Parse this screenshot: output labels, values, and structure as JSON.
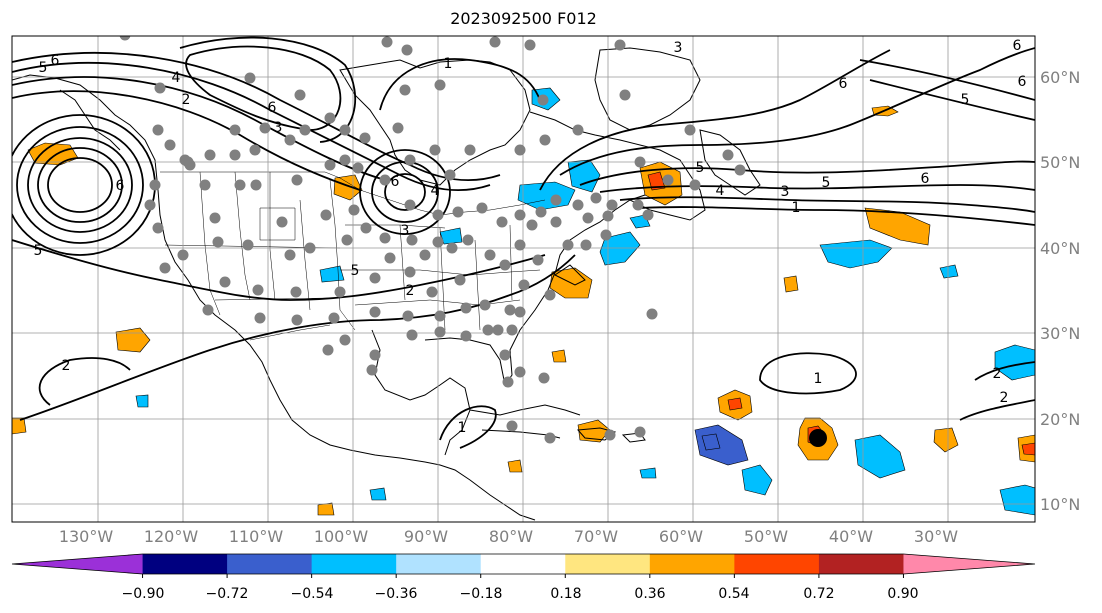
{
  "title": "2023092500 F012",
  "lon_labels": [
    "130°W",
    "120°W",
    "110°W",
    "100°W",
    "90°W",
    "80°W",
    "70°W",
    "60°W",
    "50°W",
    "40°W",
    "30°W"
  ],
  "lat_labels": [
    "60°N",
    "50°N",
    "40°N",
    "30°N",
    "20°N",
    "10°N"
  ],
  "contour_labels": [
    "1",
    "2",
    "3",
    "4",
    "5",
    "6"
  ],
  "colorbar": {
    "ticks": [
      "−0.90",
      "−0.72",
      "−0.54",
      "−0.36",
      "−0.18",
      "0.18",
      "0.36",
      "0.54",
      "0.72",
      "0.90"
    ],
    "colors": [
      "#9b30d8",
      "#000080",
      "#3a5fcd",
      "#00bfff",
      "#b0e2ff",
      "#ffffff",
      "#ffe680",
      "#ffa500",
      "#ff4500",
      "#b22222",
      "#ff88aa"
    ]
  },
  "colors": {
    "land_line": "#000000",
    "contour": "#000000",
    "grid": "#999999",
    "station": "#808080",
    "storm": "#000000",
    "positive_fill": "#ffa500",
    "negative_fill": "#00bfff"
  }
}
